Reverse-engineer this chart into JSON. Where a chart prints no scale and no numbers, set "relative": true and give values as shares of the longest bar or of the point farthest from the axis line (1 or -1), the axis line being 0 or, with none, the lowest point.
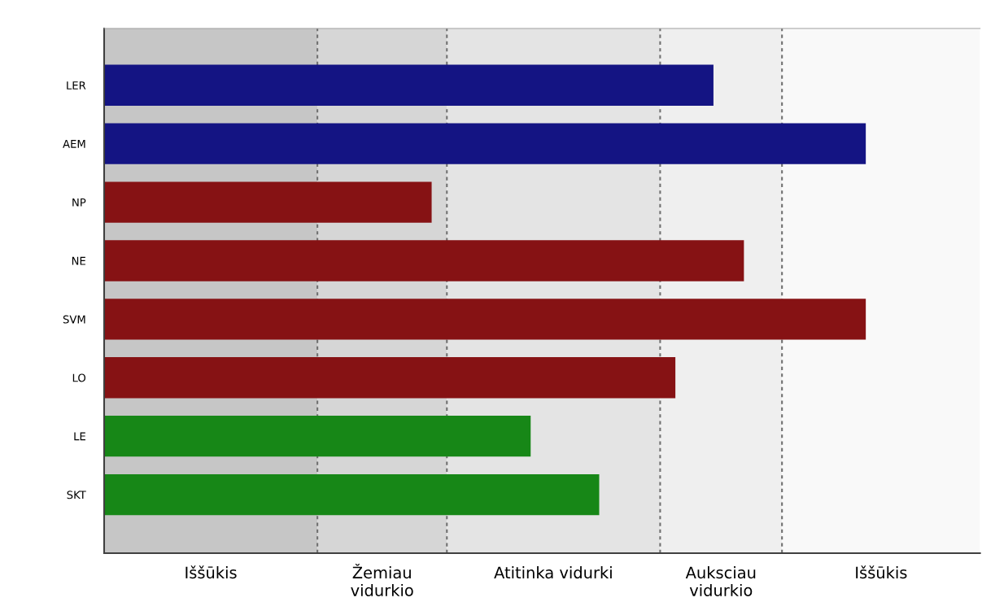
{
  "chart_data": {
    "type": "bar",
    "orientation": "horizontal",
    "relative": true,
    "categories": [
      "LER",
      "AEM",
      "NP",
      "NE",
      "SVM",
      "LO",
      "LE",
      "SKT"
    ],
    "values": [
      0.8,
      1,
      0.43,
      0.84,
      1,
      0.75,
      0.56,
      0.65
    ],
    "colors": [
      "#141483",
      "#141483",
      "#861214",
      "#861214",
      "#861214",
      "#861214",
      "#178717",
      "#178717"
    ],
    "bands": [
      {
        "axis": "x",
        "from": 0,
        "to": 0.28,
        "label": "Iššūkis",
        "color": "#c6c6c6"
      },
      {
        "axis": "x",
        "from": 0.28,
        "to": 0.45,
        "label": "Žemiau\nvidurkio",
        "color": "#d6d6d6"
      },
      {
        "axis": "x",
        "from": 0.45,
        "to": 0.73,
        "label": "Atitinka vidurki",
        "color": "#e4e4e4"
      },
      {
        "axis": "x",
        "from": 0.73,
        "to": 0.89,
        "label": "Auksciau\nvidurkio",
        "color": "#efefef"
      },
      {
        "axis": "x",
        "from": 0.89,
        "to": 1.15,
        "label": "Iššūkis",
        "color": "#f9f9f9"
      }
    ],
    "grid": false,
    "legend": false
  }
}
